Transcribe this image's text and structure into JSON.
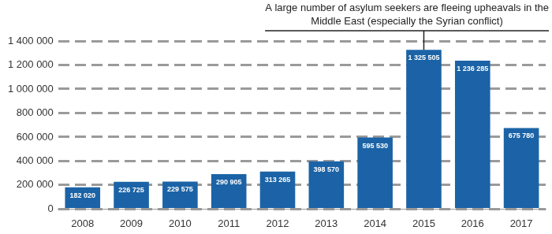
{
  "chart_data": {
    "type": "bar",
    "annotation": {
      "text": "A large number of asylum seekers are fleeing upheavals in the Middle East (especially the Syrian conflict)",
      "category": "2015"
    },
    "categories": [
      "2008",
      "2009",
      "2010",
      "2011",
      "2012",
      "2013",
      "2014",
      "2015",
      "2016",
      "2017"
    ],
    "values": [
      182020,
      226725,
      229575,
      290905,
      313265,
      398570,
      595530,
      1325505,
      1236285,
      675780
    ],
    "value_labels": [
      "182 020",
      "226 725",
      "229 575",
      "290 905",
      "313 265",
      "398 570",
      "595 530",
      "1 325 505",
      "1 236 285",
      "675 780"
    ],
    "color": "#1b63a6",
    "ylim": [
      0,
      1400000
    ],
    "yticks": [
      0,
      {
        "value": 200000,
        "label": "200 000"
      },
      {
        "value": 400000,
        "label": "400 000"
      },
      {
        "value": 600000,
        "label": "600 000"
      },
      {
        "value": 800000,
        "label": "800 000"
      },
      {
        "value": 1000000,
        "label": "1 000 000"
      },
      {
        "value": 1200000,
        "label": "1 200 000"
      },
      {
        "value": 1400000,
        "label": "1 400 000"
      }
    ],
    "grid": true,
    "data_labels": true
  }
}
